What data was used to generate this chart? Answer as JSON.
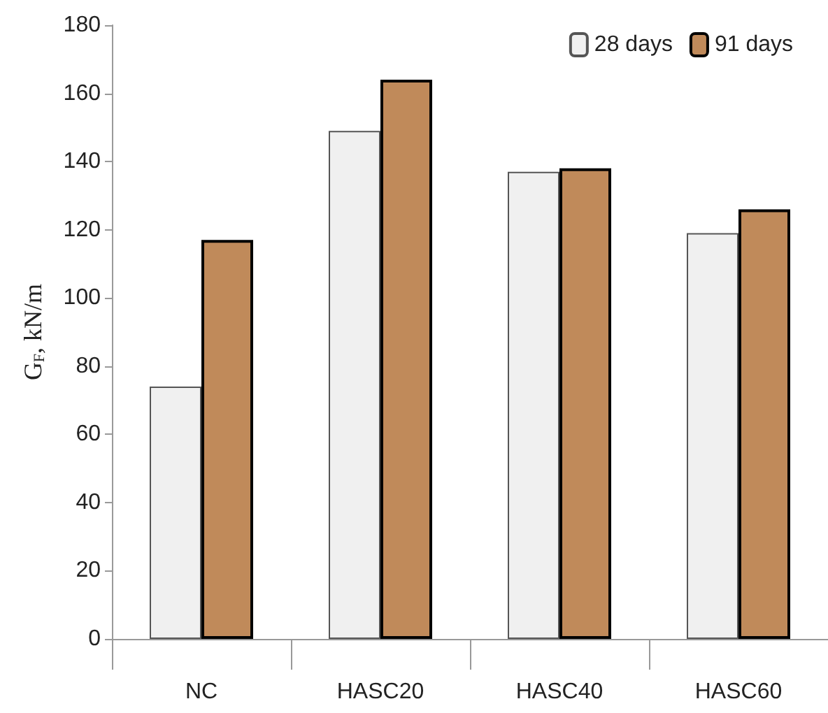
{
  "chart_data": {
    "type": "bar",
    "ylabel": "G$_{F}$, kN/m",
    "categories": [
      "NC",
      "HASC20",
      "HASC40",
      "HASC60"
    ],
    "series": [
      {
        "name": "28 days",
        "color": "#f0f0f0",
        "values": [
          74,
          149,
          137,
          119
        ]
      },
      {
        "name": "91 days",
        "color": "#c08a5a",
        "values": [
          117,
          164,
          138,
          126
        ]
      }
    ],
    "ylim": [
      0,
      180
    ],
    "yticks": [
      0,
      20,
      40,
      60,
      80,
      100,
      120,
      140,
      160,
      180
    ],
    "grid": false,
    "legend": "top right"
  }
}
